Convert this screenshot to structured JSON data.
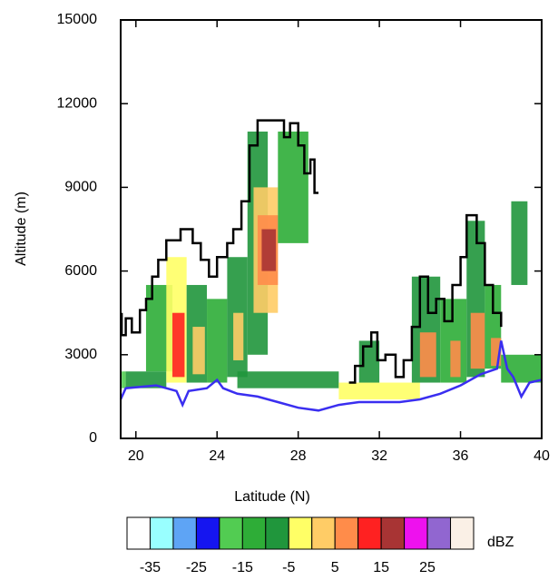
{
  "chart_data": {
    "type": "radar-section",
    "xlabel": "Latitude (N)",
    "ylabel": "Altitude (m)",
    "xlim": [
      19.25,
      40
    ],
    "ylim": [
      0,
      15000
    ],
    "xticks": [
      20,
      24,
      28,
      32,
      36,
      40
    ],
    "yticks": [
      0,
      3000,
      6000,
      9000,
      12000,
      15000
    ],
    "cells": [
      {
        "x": [
          19.3,
          19.5
        ],
        "y": [
          1800,
          2400
        ],
        "dbz": -20
      },
      {
        "x": [
          19.5,
          21.5
        ],
        "y": [
          1800,
          2400
        ],
        "dbz": -10
      },
      {
        "x": [
          20.5,
          21.8
        ],
        "y": [
          2400,
          5500
        ],
        "dbz": -15
      },
      {
        "x": [
          21.5,
          22.5
        ],
        "y": [
          2000,
          6500
        ],
        "dbz": -5
      },
      {
        "x": [
          21.8,
          22.4
        ],
        "y": [
          2200,
          4500
        ],
        "dbz": 10
      },
      {
        "x": [
          22.5,
          23.5
        ],
        "y": [
          2000,
          5500
        ],
        "dbz": -10
      },
      {
        "x": [
          22.8,
          23.4
        ],
        "y": [
          2300,
          4000
        ],
        "dbz": 0
      },
      {
        "x": [
          23.5,
          24.5
        ],
        "y": [
          2000,
          5000
        ],
        "dbz": -15
      },
      {
        "x": [
          24.5,
          25.5
        ],
        "y": [
          2200,
          6500
        ],
        "dbz": -10
      },
      {
        "x": [
          24.8,
          25.3
        ],
        "y": [
          2800,
          4500
        ],
        "dbz": 0
      },
      {
        "x": [
          25.5,
          26.5
        ],
        "y": [
          3000,
          11000
        ],
        "dbz": -10
      },
      {
        "x": [
          25.8,
          27.0
        ],
        "y": [
          4500,
          9000
        ],
        "dbz": 0
      },
      {
        "x": [
          26.0,
          27.0
        ],
        "y": [
          5500,
          8000
        ],
        "dbz": 8
      },
      {
        "x": [
          26.2,
          26.9
        ],
        "y": [
          6000,
          7500
        ],
        "dbz": 15
      },
      {
        "x": [
          27.0,
          28.5
        ],
        "y": [
          7000,
          11000
        ],
        "dbz": -15
      },
      {
        "x": [
          25.0,
          30.0
        ],
        "y": [
          1800,
          2400
        ],
        "dbz": -10
      },
      {
        "x": [
          30.0,
          34.0
        ],
        "y": [
          1400,
          2000
        ],
        "dbz": -5
      },
      {
        "x": [
          31.0,
          32.0
        ],
        "y": [
          2000,
          3500
        ],
        "dbz": -10
      },
      {
        "x": [
          33.6,
          35.0
        ],
        "y": [
          2000,
          5800
        ],
        "dbz": -10
      },
      {
        "x": [
          34.0,
          34.8
        ],
        "y": [
          2200,
          3800
        ],
        "dbz": 5
      },
      {
        "x": [
          35.0,
          36.3
        ],
        "y": [
          2000,
          5000
        ],
        "dbz": -15
      },
      {
        "x": [
          35.5,
          36.0
        ],
        "y": [
          2200,
          3500
        ],
        "dbz": 5
      },
      {
        "x": [
          36.3,
          37.2
        ],
        "y": [
          2200,
          7800
        ],
        "dbz": -10
      },
      {
        "x": [
          36.5,
          37.2
        ],
        "y": [
          2500,
          4500
        ],
        "dbz": 5
      },
      {
        "x": [
          37.2,
          38.0
        ],
        "y": [
          2500,
          5500
        ],
        "dbz": -15
      },
      {
        "x": [
          37.5,
          38.0
        ],
        "y": [
          2600,
          3600
        ],
        "dbz": 8
      },
      {
        "x": [
          38.5,
          39.3
        ],
        "y": [
          5500,
          8500
        ],
        "dbz": -10
      },
      {
        "x": [
          38.0,
          40.0
        ],
        "y": [
          2000,
          3000
        ],
        "dbz": -15
      }
    ],
    "series": [
      {
        "color": "#000000",
        "x": [
          19.3,
          19.3,
          19.5,
          19.5,
          19.8,
          19.8,
          20.2,
          20.2,
          20.5,
          20.5,
          20.8,
          20.8,
          21.1,
          21.1,
          21.5,
          21.5,
          22.2,
          22.2,
          22.8,
          22.8,
          23.2,
          23.2,
          23.6,
          23.6,
          24.0,
          24.0,
          24.5,
          24.5,
          24.8,
          24.8,
          25.2,
          25.2,
          25.6,
          25.6,
          26.0,
          26.0,
          27.3,
          27.3,
          27.6,
          27.6,
          28.0,
          28.0,
          28.3,
          28.3,
          28.6,
          28.6,
          28.8,
          28.8,
          29.0,
          29.8,
          30.5,
          30.8,
          30.8,
          31.2,
          31.2,
          31.6,
          31.6,
          31.9,
          31.9,
          32.3,
          32.3,
          32.8,
          32.8,
          33.2,
          33.2,
          33.6,
          33.6,
          34.0,
          34.0,
          34.4,
          34.4,
          34.8,
          34.8,
          35.2,
          35.2,
          35.6,
          35.6,
          36.0,
          36.0,
          36.3,
          36.3,
          36.8,
          36.8,
          37.2,
          37.2,
          37.6,
          37.6,
          38.0,
          38.0
        ],
        "values": [
          4500,
          3700,
          3700,
          4300,
          4300,
          3800,
          3800,
          4600,
          4600,
          5000,
          5000,
          5800,
          5800,
          6400,
          6400,
          7100,
          7100,
          7500,
          7500,
          7000,
          7000,
          6400,
          6400,
          5800,
          5800,
          6500,
          6500,
          7000,
          7000,
          7500,
          7500,
          8500,
          8500,
          10500,
          10500,
          11400,
          11400,
          10800,
          10800,
          11300,
          11300,
          10500,
          10500,
          9500,
          9500,
          10000,
          10000,
          8800,
          8800,
          null,
          2000,
          2000,
          2600,
          2600,
          3300,
          3300,
          3800,
          3800,
          2800,
          2800,
          3000,
          3000,
          2200,
          2200,
          2800,
          2800,
          4000,
          4000,
          5800,
          5800,
          4500,
          4500,
          5000,
          5000,
          4200,
          4200,
          5500,
          5500,
          6500,
          6500,
          8000,
          8000,
          7000,
          7000,
          5500,
          5500,
          4500,
          4500,
          4000
        ]
      },
      {
        "color": "#3a2ef0",
        "x": [
          19.25,
          19.5,
          21,
          22,
          22.3,
          22.6,
          23.5,
          24,
          24.3,
          25,
          26,
          27,
          28,
          29,
          30,
          31,
          32,
          33,
          34,
          35,
          36,
          37,
          37.8,
          38,
          38.3,
          38.6,
          39,
          39.4,
          40
        ],
        "values": [
          1400,
          1800,
          1900,
          1700,
          1200,
          1700,
          1800,
          2100,
          1800,
          1600,
          1500,
          1300,
          1100,
          1000,
          1200,
          1300,
          1300,
          1300,
          1400,
          1600,
          1900,
          2300,
          2500,
          3500,
          2500,
          2200,
          1500,
          2000,
          2100
        ]
      }
    ],
    "colorbar": {
      "label": "dBZ",
      "levels": [
        -35,
        -30,
        -25,
        -20,
        -15,
        -10,
        -5,
        0,
        5,
        10,
        15,
        20,
        25,
        30
      ],
      "ticks": [
        -35,
        -25,
        -15,
        -5,
        5,
        15,
        25
      ],
      "colors": [
        "#ffffff",
        "#99ffff",
        "#5ea4f5",
        "#1515f0",
        "#52cc52",
        "#2ead37",
        "#20963c",
        "#ffff66",
        "#ffcc66",
        "#ff8c4a",
        "#ff2121",
        "#a83434",
        "#ee11ee",
        "#9166d0",
        "#faf0e6"
      ]
    }
  }
}
